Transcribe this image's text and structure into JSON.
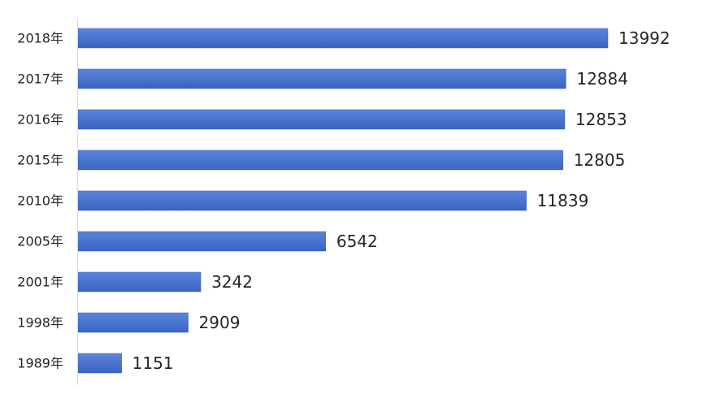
{
  "chart_data": {
    "type": "bar",
    "orientation": "horizontal",
    "categories": [
      "2018年",
      "2017年",
      "2016年",
      "2015年",
      "2010年",
      "2005年",
      "2001年",
      "1998年",
      "1989年"
    ],
    "values": [
      13992,
      12884,
      12853,
      12805,
      11839,
      6542,
      3242,
      2909,
      1151
    ],
    "title": "",
    "xlabel": "",
    "ylabel": "",
    "xlim": [
      0,
      14000
    ],
    "grid": false,
    "legend": "none",
    "data_labels": true,
    "colors": {
      "bar_top": "#5b84db",
      "bar_bottom": "#3a63c2",
      "bar_stroke": "#3560c0",
      "axis": "#d9d9d9",
      "text": "#262626"
    }
  }
}
